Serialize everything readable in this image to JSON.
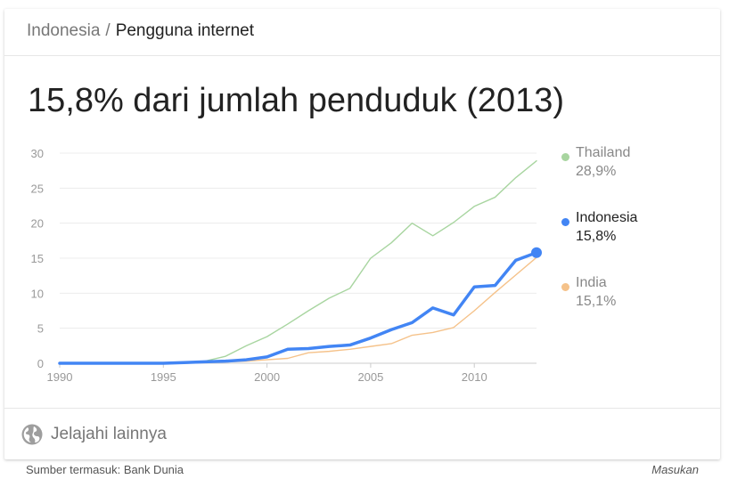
{
  "breadcrumb": {
    "parent": "Indonesia",
    "separator": "/",
    "current": "Pengguna internet"
  },
  "headline": "15,8% dari jumlah penduduk (2013)",
  "legend": [
    {
      "name": "Thailand",
      "value": "28,9%",
      "color": "#a8d5a0"
    },
    {
      "name": "Indonesia",
      "value": "15,8%",
      "color": "#4285f4"
    },
    {
      "name": "India",
      "value": "15,1%",
      "color": "#f5c28a"
    }
  ],
  "explore": {
    "label": "Jelajahi lainnya",
    "icon": "globe-icon"
  },
  "footer": {
    "source": "Sumber termasuk: Bank Dunia",
    "feedback": "Masukan"
  },
  "chart_data": {
    "type": "line",
    "x": [
      1990,
      1991,
      1992,
      1993,
      1994,
      1995,
      1996,
      1997,
      1998,
      1999,
      2000,
      2001,
      2002,
      2003,
      2004,
      2005,
      2006,
      2007,
      2008,
      2009,
      2010,
      2011,
      2012,
      2013
    ],
    "xticks": [
      "1990",
      "1995",
      "2000",
      "2005",
      "2010"
    ],
    "yticks": [
      "0",
      "5",
      "10",
      "15",
      "20",
      "25",
      "30"
    ],
    "xlim": [
      1990,
      2013
    ],
    "ylim": [
      0,
      30
    ],
    "grid": true,
    "legend_position": "right",
    "series": [
      {
        "name": "Thailand",
        "color": "#a8d5a0",
        "values": [
          0,
          0,
          0,
          0,
          0,
          0,
          0.1,
          0.3,
          1.0,
          2.5,
          3.8,
          5.6,
          7.5,
          9.3,
          10.7,
          15.0,
          17.2,
          20.0,
          18.2,
          20.1,
          22.4,
          23.7,
          26.5,
          28.9
        ]
      },
      {
        "name": "India",
        "color": "#f5c28a",
        "values": [
          0,
          0,
          0,
          0,
          0,
          0,
          0,
          0.1,
          0.2,
          0.3,
          0.5,
          0.7,
          1.5,
          1.7,
          2.0,
          2.4,
          2.8,
          4.0,
          4.4,
          5.1,
          7.5,
          10.1,
          12.6,
          15.1
        ]
      },
      {
        "name": "Indonesia",
        "color": "#4285f4",
        "values": [
          0,
          0,
          0,
          0,
          0,
          0,
          0.1,
          0.2,
          0.3,
          0.5,
          0.9,
          2.0,
          2.1,
          2.4,
          2.6,
          3.6,
          4.8,
          5.8,
          7.9,
          6.9,
          10.9,
          11.1,
          14.7,
          15.8
        ]
      }
    ]
  }
}
